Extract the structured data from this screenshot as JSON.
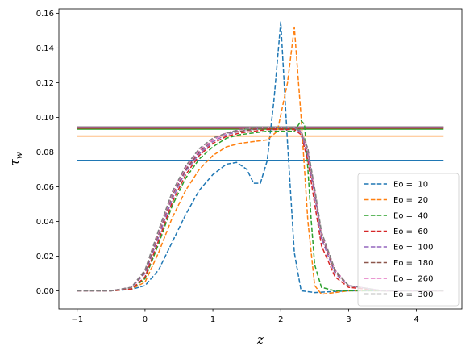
{
  "chart_data": {
    "type": "line",
    "title": "",
    "xlabel": "z",
    "ylabel_main": "τ",
    "ylabel_sub": "w",
    "xlim": [
      -1.27,
      4.67
    ],
    "ylim": [
      -0.0105,
      0.1625
    ],
    "xticks": [
      -1,
      0,
      1,
      2,
      3,
      4
    ],
    "xtick_labels": [
      "−1",
      "0",
      "1",
      "2",
      "3",
      "4"
    ],
    "yticks": [
      0.0,
      0.02,
      0.04,
      0.06,
      0.08,
      0.1,
      0.12,
      0.14,
      0.16
    ],
    "ytick_labels": [
      "0.00",
      "0.02",
      "0.04",
      "0.06",
      "0.08",
      "0.10",
      "0.12",
      "0.14",
      "0.16"
    ],
    "grid": false,
    "legend_position": "lower-right",
    "reference_lines": [
      {
        "series": "Eo = 10",
        "value": 0.0752,
        "x_range": [
          -1,
          4.4
        ],
        "color": "#1f77b4"
      },
      {
        "series": "Eo = 20",
        "value": 0.0892,
        "x_range": [
          -1,
          4.4
        ],
        "color": "#ff7f0e"
      },
      {
        "series": "Eo = 40",
        "value": 0.0932,
        "x_range": [
          -1,
          4.4
        ],
        "color": "#2ca02c"
      },
      {
        "series": "Eo = 60",
        "value": 0.0938,
        "x_range": [
          -1,
          4.4
        ],
        "color": "#d62728"
      },
      {
        "series": "Eo = 100",
        "value": 0.0941,
        "x_range": [
          -1,
          4.4
        ],
        "color": "#9467bd"
      },
      {
        "series": "Eo = 180",
        "value": 0.0943,
        "x_range": [
          -1,
          4.4
        ],
        "color": "#8c564b"
      },
      {
        "series": "Eo = 260",
        "value": 0.0944,
        "x_range": [
          -1,
          4.4
        ],
        "color": "#e377c2"
      },
      {
        "series": "Eo = 300",
        "value": 0.0945,
        "x_range": [
          -1,
          4.4
        ],
        "color": "#7f7f7f"
      }
    ],
    "series": [
      {
        "name": "Eo =  10",
        "color": "#1f77b4",
        "x": [
          -1.0,
          -0.5,
          -0.2,
          0.0,
          0.2,
          0.4,
          0.6,
          0.8,
          1.0,
          1.2,
          1.35,
          1.5,
          1.6,
          1.7,
          1.8,
          1.9,
          2.0,
          2.1,
          2.2,
          2.3,
          2.5,
          3.0,
          3.5,
          4.0,
          4.4
        ],
        "y": [
          0.0,
          0.0,
          0.0008,
          0.003,
          0.012,
          0.028,
          0.044,
          0.058,
          0.067,
          0.073,
          0.074,
          0.07,
          0.062,
          0.062,
          0.075,
          0.11,
          0.155,
          0.085,
          0.022,
          0.0,
          -0.001,
          0.0,
          0.0,
          0.0,
          0.0
        ]
      },
      {
        "name": "Eo =  20",
        "color": "#ff7f0e",
        "x": [
          -1.0,
          -0.5,
          -0.2,
          0.0,
          0.2,
          0.4,
          0.6,
          0.8,
          1.0,
          1.2,
          1.4,
          1.6,
          1.8,
          1.95,
          2.1,
          2.2,
          2.3,
          2.4,
          2.5,
          2.6,
          3.0,
          3.5,
          4.0,
          4.4
        ],
        "y": [
          0.0,
          0.0,
          0.001,
          0.005,
          0.022,
          0.042,
          0.058,
          0.07,
          0.078,
          0.083,
          0.085,
          0.086,
          0.087,
          0.092,
          0.12,
          0.152,
          0.1,
          0.04,
          0.003,
          -0.002,
          0.0,
          0.0,
          0.0,
          0.0
        ]
      },
      {
        "name": "Eo =  40",
        "color": "#2ca02c",
        "x": [
          -1.0,
          -0.5,
          -0.2,
          0.0,
          0.2,
          0.4,
          0.6,
          0.8,
          1.0,
          1.2,
          1.4,
          1.6,
          1.8,
          2.0,
          2.2,
          2.3,
          2.35,
          2.4,
          2.45,
          2.5,
          2.6,
          2.8,
          3.0,
          3.5,
          4.0,
          4.4
        ],
        "y": [
          0.0,
          0.0,
          0.001,
          0.007,
          0.027,
          0.049,
          0.065,
          0.076,
          0.083,
          0.088,
          0.09,
          0.091,
          0.092,
          0.092,
          0.092,
          0.098,
          0.096,
          0.07,
          0.04,
          0.015,
          0.002,
          0.0,
          0.0,
          0.0,
          0.0,
          0.0
        ]
      },
      {
        "name": "Eo =  60",
        "color": "#d62728",
        "x": [
          -1.0,
          -0.5,
          -0.2,
          0.0,
          0.2,
          0.4,
          0.6,
          0.8,
          1.0,
          1.2,
          1.4,
          1.6,
          1.8,
          2.0,
          2.2,
          2.3,
          2.4,
          2.5,
          2.6,
          2.8,
          3.0,
          3.5,
          4.0,
          4.4
        ],
        "y": [
          0.0,
          0.0,
          0.001,
          0.008,
          0.029,
          0.051,
          0.067,
          0.078,
          0.085,
          0.089,
          0.091,
          0.092,
          0.093,
          0.093,
          0.093,
          0.09,
          0.075,
          0.05,
          0.026,
          0.008,
          0.002,
          0.0,
          0.0,
          0.0
        ]
      },
      {
        "name": "Eo =  100",
        "color": "#9467bd",
        "x": [
          -1.0,
          -0.5,
          -0.2,
          0.0,
          0.2,
          0.4,
          0.6,
          0.8,
          1.0,
          1.2,
          1.4,
          1.6,
          1.8,
          2.0,
          2.2,
          2.3,
          2.4,
          2.5,
          2.6,
          2.8,
          3.0,
          3.5,
          4.0,
          4.4
        ],
        "y": [
          0.0,
          0.0,
          0.002,
          0.01,
          0.031,
          0.053,
          0.069,
          0.079,
          0.086,
          0.09,
          0.092,
          0.093,
          0.094,
          0.094,
          0.094,
          0.091,
          0.078,
          0.055,
          0.03,
          0.01,
          0.003,
          0.0,
          0.0,
          0.0
        ]
      },
      {
        "name": "Eo =  180",
        "color": "#8c564b",
        "x": [
          -1.0,
          -0.5,
          -0.2,
          0.0,
          0.2,
          0.4,
          0.6,
          0.8,
          1.0,
          1.2,
          1.4,
          1.6,
          1.8,
          2.0,
          2.2,
          2.3,
          2.4,
          2.5,
          2.6,
          2.8,
          3.0,
          3.5,
          4.0,
          4.4
        ],
        "y": [
          0.0,
          0.0,
          0.002,
          0.011,
          0.033,
          0.055,
          0.07,
          0.08,
          0.087,
          0.091,
          0.092,
          0.093,
          0.094,
          0.094,
          0.094,
          0.092,
          0.08,
          0.057,
          0.032,
          0.011,
          0.003,
          0.0,
          0.0,
          0.0
        ]
      },
      {
        "name": "Eo =  260",
        "color": "#e377c2",
        "x": [
          -1.0,
          -0.5,
          -0.2,
          0.0,
          0.2,
          0.4,
          0.6,
          0.8,
          1.0,
          1.2,
          1.4,
          1.6,
          1.8,
          2.0,
          2.2,
          2.3,
          2.4,
          2.5,
          2.6,
          2.8,
          3.0,
          3.5,
          4.0,
          4.4
        ],
        "y": [
          0.0,
          0.0,
          0.002,
          0.012,
          0.034,
          0.056,
          0.071,
          0.081,
          0.087,
          0.091,
          0.093,
          0.094,
          0.094,
          0.094,
          0.094,
          0.092,
          0.081,
          0.058,
          0.033,
          0.012,
          0.003,
          0.0,
          0.0,
          0.0
        ]
      },
      {
        "name": "Eo =  300",
        "color": "#7f7f7f",
        "x": [
          -1.0,
          -0.5,
          -0.2,
          0.0,
          0.2,
          0.4,
          0.6,
          0.8,
          1.0,
          1.2,
          1.4,
          1.6,
          1.8,
          2.0,
          2.2,
          2.3,
          2.4,
          2.5,
          2.6,
          2.8,
          3.0,
          3.5,
          4.0,
          4.4
        ],
        "y": [
          0.0,
          0.0,
          0.002,
          0.012,
          0.035,
          0.057,
          0.072,
          0.082,
          0.088,
          0.091,
          0.093,
          0.094,
          0.094,
          0.094,
          0.094,
          0.092,
          0.082,
          0.059,
          0.034,
          0.012,
          0.003,
          0.0,
          0.0,
          0.0
        ]
      }
    ]
  }
}
